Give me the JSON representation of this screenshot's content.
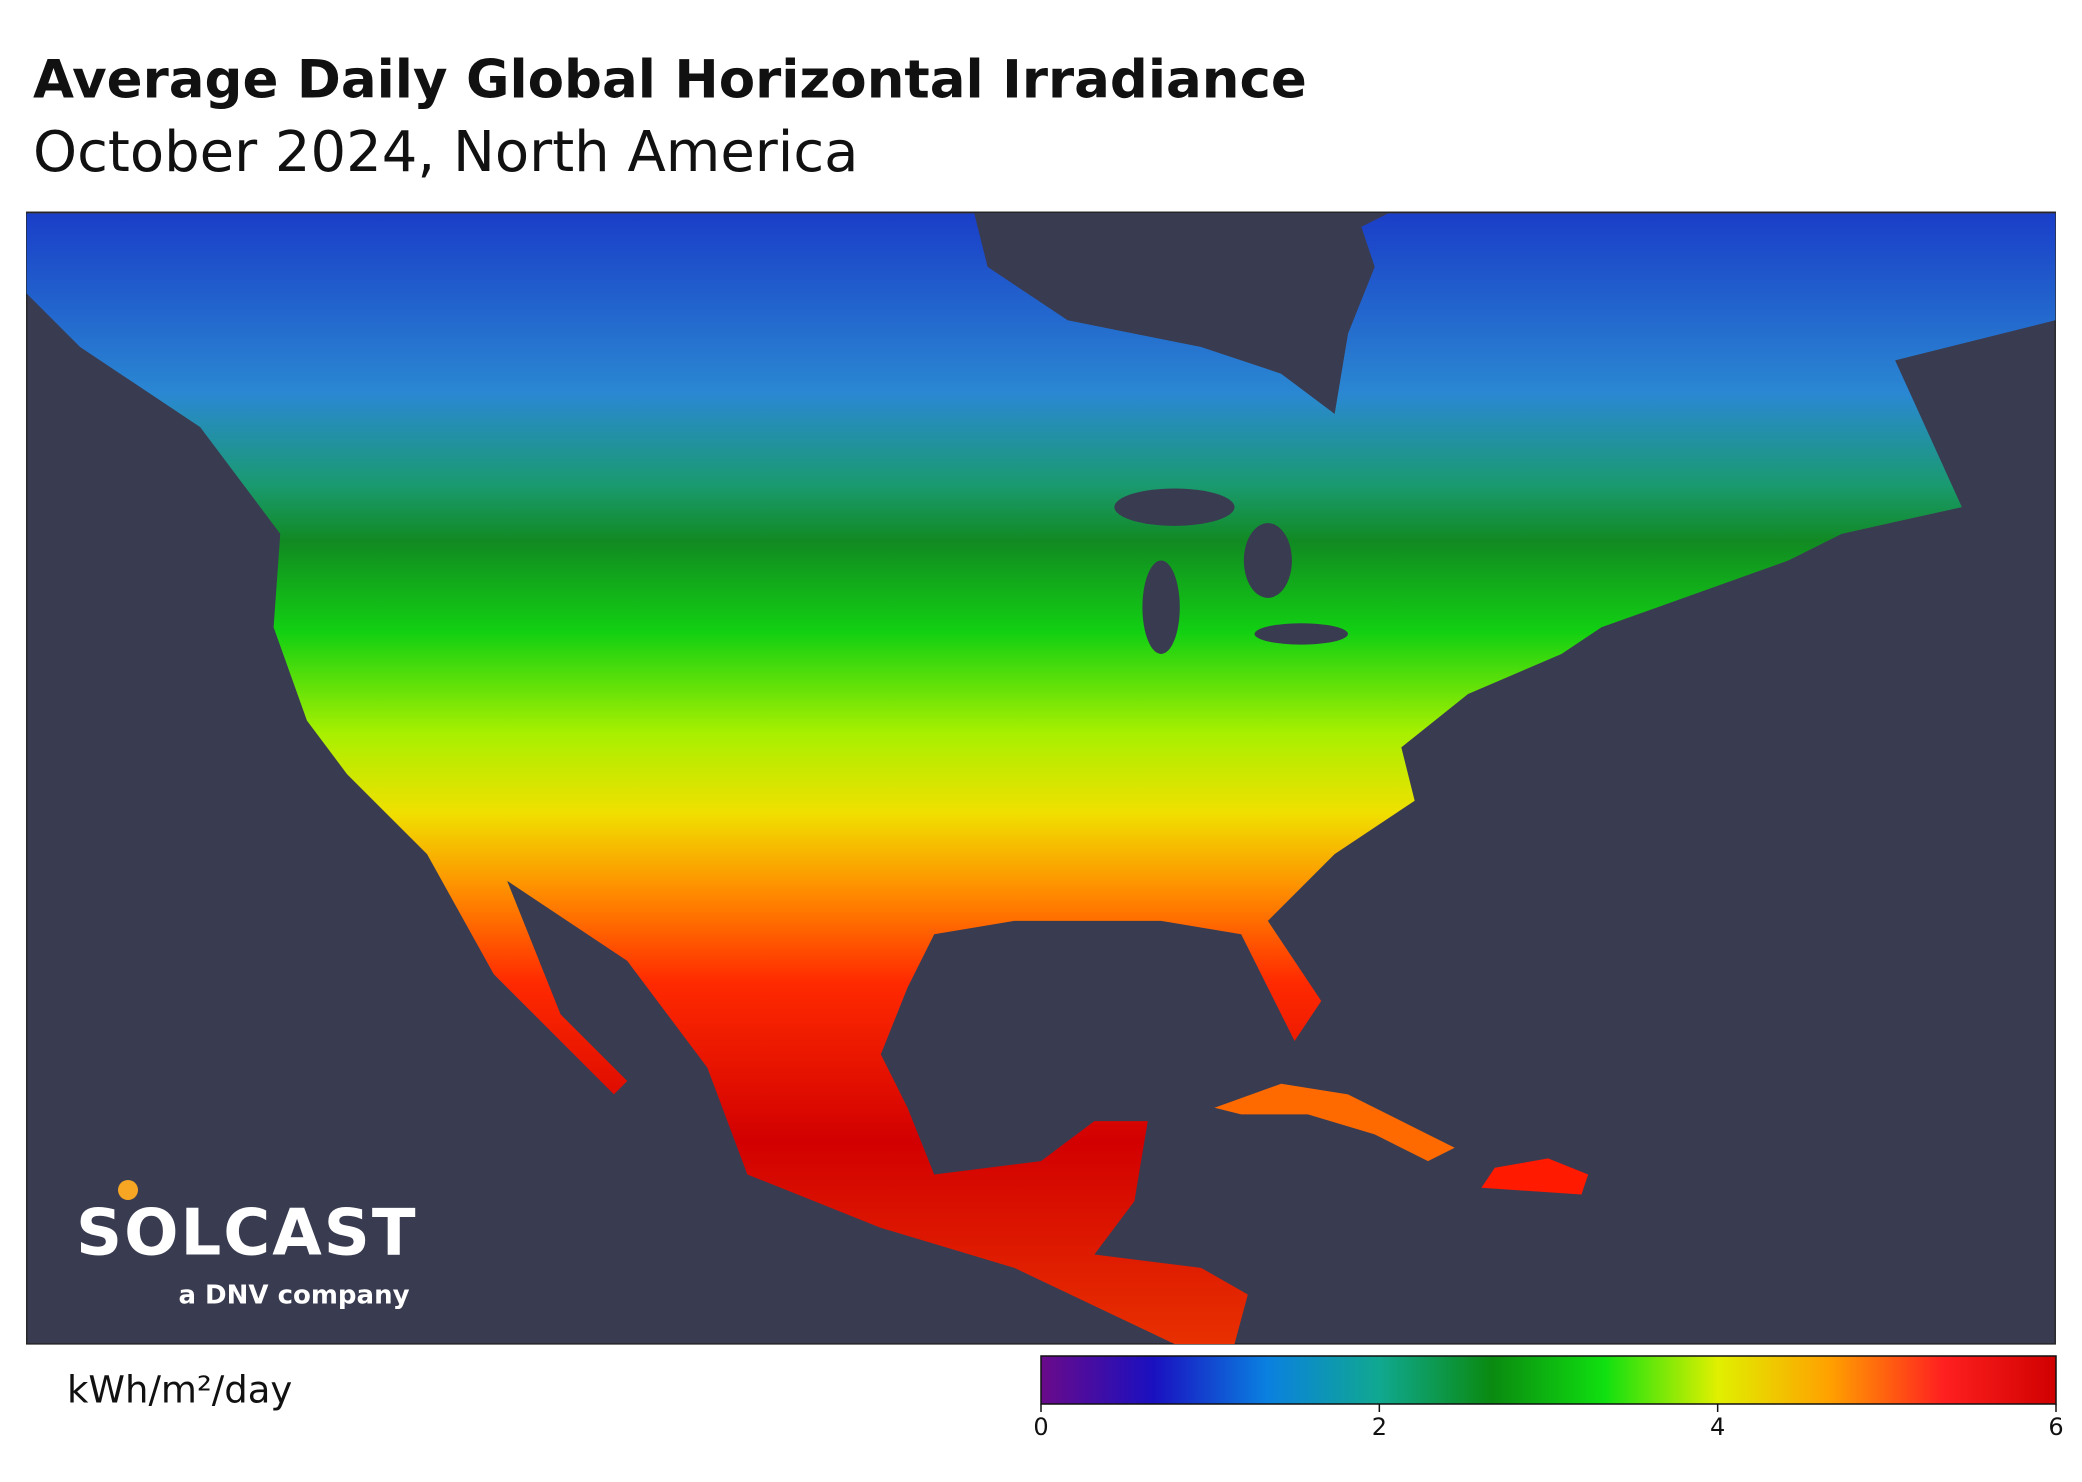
{
  "header": {
    "title": "Average Daily Global Horizontal Irradiance",
    "subtitle": "October 2024, North America"
  },
  "logo": {
    "name": "SOLCAST",
    "tagline": "a DNV company"
  },
  "colorbar": {
    "label": "kWh/m²/day",
    "range": [
      0,
      6
    ],
    "ticks": [
      0,
      2,
      4,
      6
    ],
    "colors": [
      "#6a0a8a",
      "#1a10c0",
      "#0a80e0",
      "#10a890",
      "#0a8a10",
      "#10e010",
      "#e0f000",
      "#ffa000",
      "#ff2020",
      "#d00000"
    ]
  }
}
